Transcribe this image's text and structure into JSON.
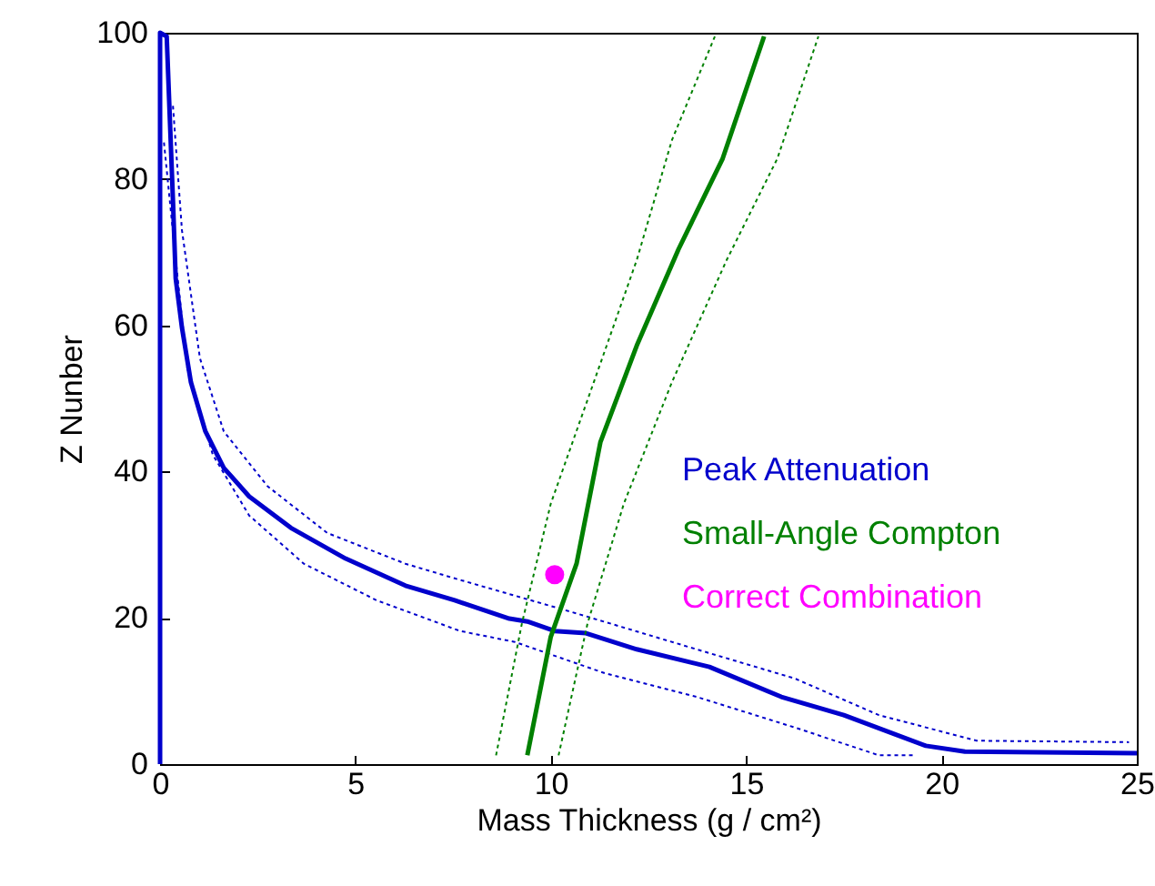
{
  "chart_data": {
    "type": "line",
    "xlabel": "Mass Thickness (g / cm²)",
    "ylabel": "Z Nunber",
    "xlim": [
      0,
      25
    ],
    "ylim": [
      0,
      100
    ],
    "xticks": [
      0,
      5,
      10,
      15,
      20,
      25
    ],
    "yticks": [
      0,
      20,
      40,
      60,
      80,
      100
    ],
    "grid": false,
    "legend": "right",
    "series": [
      {
        "name": "Peak Attenuation",
        "color": "#0000cc",
        "line_style": "solid",
        "x": [
          0,
          0,
          0.17,
          0.33,
          0.4,
          0.56,
          0.79,
          1.16,
          1.63,
          2.28,
          3.35,
          4.75,
          6.28,
          7.54,
          8.94,
          9.4,
          10.1,
          10.9,
          12.2,
          14.06,
          15.9,
          17.5,
          19.6,
          20.6,
          25
        ],
        "values": [
          0,
          100,
          99.5,
          77.1,
          66.4,
          59.7,
          52.2,
          45.5,
          40.5,
          36.6,
          32.3,
          28.1,
          24.4,
          22.4,
          19.9,
          19.5,
          18.2,
          17.9,
          15.7,
          13.3,
          9.2,
          6.7,
          2.5,
          1.7,
          1.5
        ]
      },
      {
        "color": "#0000cc",
        "type": "line",
        "line_style": "dotted",
        "x": [
          0.33,
          0.56,
          1.02,
          1.63,
          2.75,
          4.28,
          6.28,
          7.54,
          10.66,
          13.73,
          16.25,
          18.4,
          20.9,
          24.8
        ],
        "values": [
          90,
          73,
          55.5,
          45.5,
          38,
          31.6,
          27.4,
          25.4,
          20.6,
          15.7,
          11.7,
          6.7,
          3.2,
          3.0
        ]
      },
      {
        "color": "#0000cc",
        "type": "line",
        "line_style": "dotted",
        "x": [
          0.1,
          0.4,
          0.7,
          1.35,
          2.28,
          3.68,
          5.54,
          7.68,
          9.08,
          11.4,
          13.73,
          16.25,
          18.4,
          19.3
        ],
        "values": [
          85,
          69,
          54,
          42.3,
          34,
          27.4,
          22.4,
          18.2,
          16.7,
          12.4,
          9.2,
          5,
          1.2,
          1.2
        ]
      },
      {
        "name": "Small-Angle Compton",
        "color": "#008000",
        "line_style": "solid",
        "x": [
          9.4,
          10.0,
          10.66,
          11.27,
          12.2,
          13.27,
          14.4,
          15.46
        ],
        "values": [
          1.2,
          17.4,
          27.4,
          44,
          57.2,
          70.4,
          82.8,
          99.5
        ]
      },
      {
        "color": "#008000",
        "line_style": "dotted",
        "x": [
          8.6,
          9.26,
          10.0,
          11.1,
          12.2,
          13.1,
          14.2
        ],
        "values": [
          1.2,
          19.2,
          35.6,
          52.2,
          68.9,
          85.3,
          99.5
        ]
      },
      {
        "color": "#008000",
        "line_style": "dotted",
        "x": [
          10.2,
          10.94,
          11.87,
          13.1,
          14.5,
          15.8,
          16.85
        ],
        "values": [
          1.2,
          19.2,
          35.6,
          52.2,
          68.9,
          82.8,
          99.5
        ]
      },
      {
        "name": "Correct Combination",
        "type": "scatter",
        "marker": "circle",
        "color": "#ff00ff",
        "x": [
          10.1
        ],
        "values": [
          25.9
        ]
      }
    ]
  }
}
